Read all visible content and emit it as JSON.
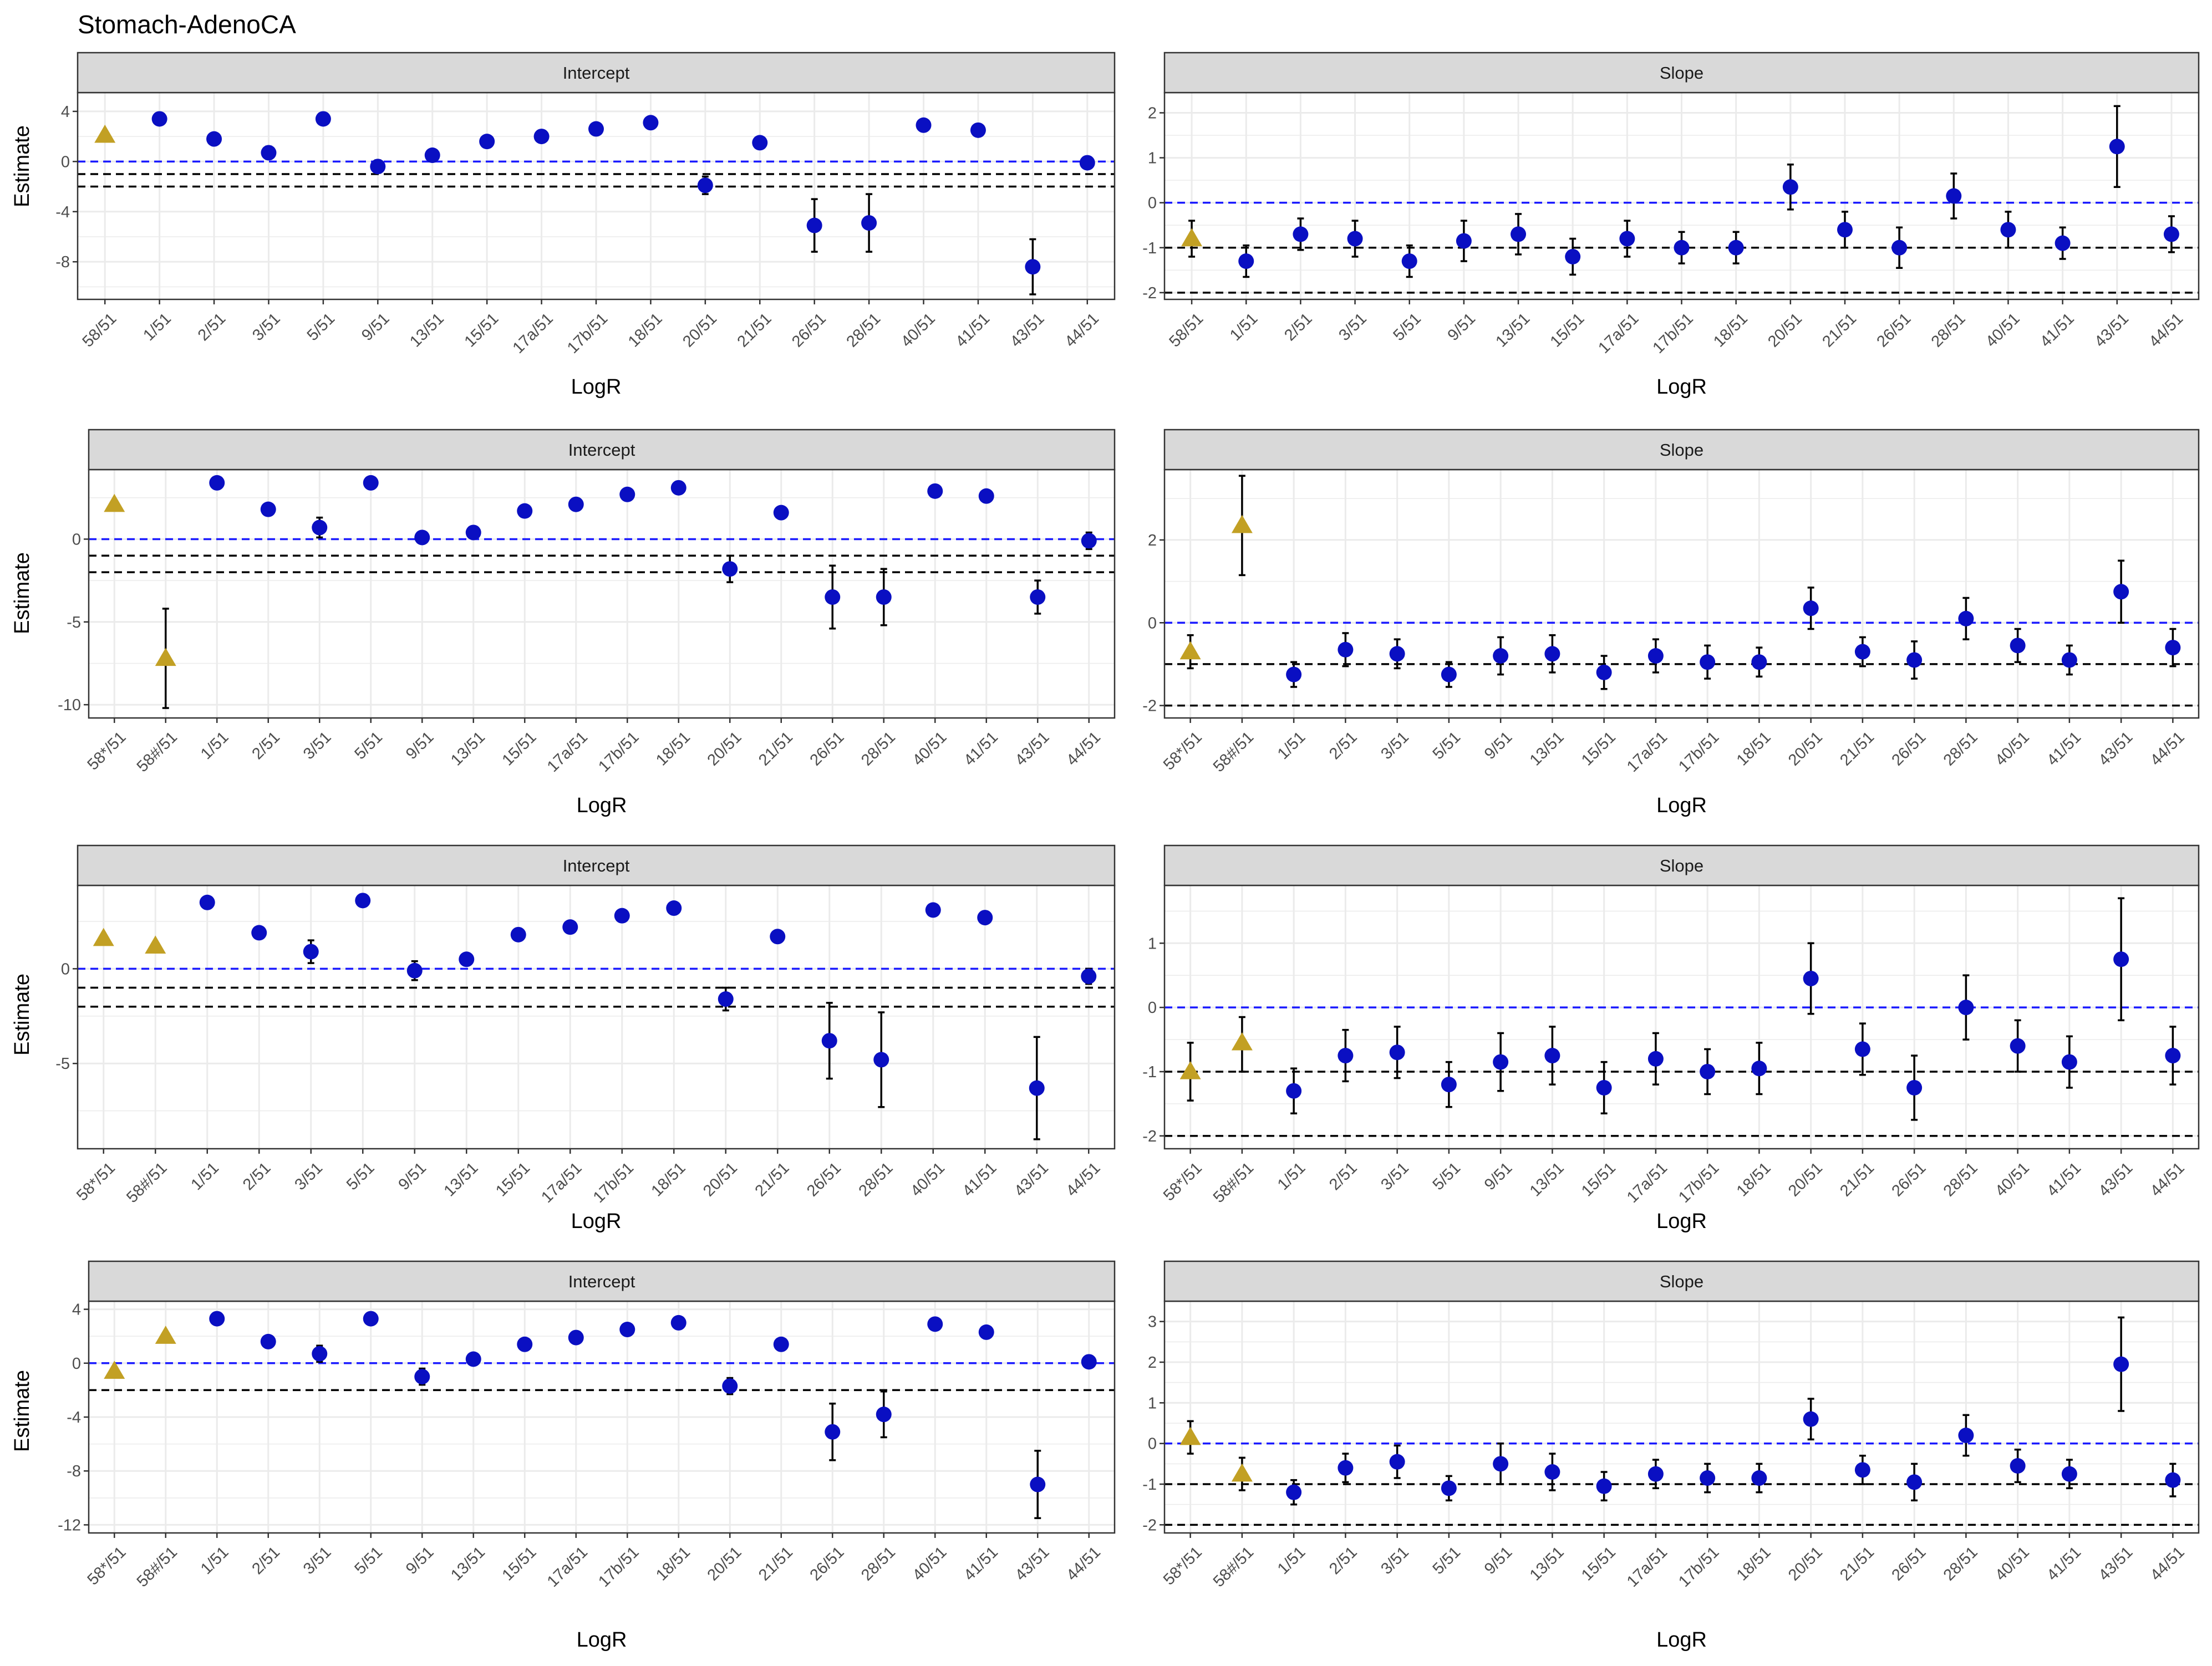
{
  "title": "Stomach-AdenoCA",
  "colors": {
    "point_blue": "#0a0fc2",
    "point_gold": "#c2a024",
    "ref_blue": "#1a1aff",
    "ref_black": "#000000",
    "strip_bg": "#d9d9d9",
    "grid": "#ebebeb"
  },
  "chart_data": [
    {
      "row": 1,
      "panel": "Intercept",
      "type": "scatter",
      "xlabel": "LogR",
      "ylabel": "Estimate",
      "ylim": [
        -11,
        5.5
      ],
      "yticks": [
        -8,
        -4,
        0,
        4
      ],
      "ytick_labels": [
        "-8",
        "-4",
        "0",
        "4"
      ],
      "ref_lines": [
        {
          "y": 0,
          "color": "blue"
        },
        {
          "y": -1,
          "color": "black"
        },
        {
          "y": -2,
          "color": "black"
        }
      ],
      "categories": [
        "58/51",
        "1/51",
        "2/51",
        "3/51",
        "5/51",
        "9/51",
        "13/51",
        "15/51",
        "17a/51",
        "17b/51",
        "18/51",
        "20/51",
        "21/51",
        "26/51",
        "28/51",
        "40/51",
        "41/51",
        "43/51",
        "44/51"
      ],
      "estimate": [
        2.1,
        3.4,
        1.8,
        0.7,
        3.4,
        -0.4,
        0.5,
        1.6,
        2.0,
        2.6,
        3.1,
        -1.9,
        1.5,
        -5.1,
        -4.9,
        2.9,
        2.5,
        -8.4,
        -0.1
      ],
      "lower": [
        2.1,
        3.4,
        1.8,
        0.2,
        3.4,
        -0.9,
        0.5,
        1.6,
        2.0,
        2.6,
        3.1,
        -2.6,
        1.5,
        -7.2,
        -7.2,
        2.9,
        2.5,
        -10.6,
        -0.4
      ],
      "upper": [
        2.1,
        3.4,
        1.8,
        1.2,
        3.4,
        0.1,
        0.5,
        1.6,
        2.0,
        2.6,
        3.1,
        -1.2,
        1.5,
        -3.0,
        -2.6,
        2.9,
        2.5,
        -6.2,
        0.2
      ],
      "group": [
        "gold",
        "blue",
        "blue",
        "blue",
        "blue",
        "blue",
        "blue",
        "blue",
        "blue",
        "blue",
        "blue",
        "blue",
        "blue",
        "blue",
        "blue",
        "blue",
        "blue",
        "blue",
        "blue"
      ]
    },
    {
      "row": 1,
      "panel": "Slope",
      "type": "scatter",
      "xlabel": "LogR",
      "ylabel": "",
      "ylim": [
        -2.15,
        2.45
      ],
      "yticks": [
        -2,
        -1,
        0,
        1,
        2
      ],
      "ytick_labels": [
        "-2",
        "-1",
        "0",
        "1",
        "2"
      ],
      "ref_lines": [
        {
          "y": 0,
          "color": "blue"
        },
        {
          "y": -1,
          "color": "black"
        },
        {
          "y": -2,
          "color": "black"
        }
      ],
      "categories": [
        "58/51",
        "1/51",
        "2/51",
        "3/51",
        "5/51",
        "9/51",
        "13/51",
        "15/51",
        "17a/51",
        "17b/51",
        "18/51",
        "20/51",
        "21/51",
        "26/51",
        "28/51",
        "40/51",
        "41/51",
        "43/51",
        "44/51"
      ],
      "estimate": [
        -0.8,
        -1.3,
        -0.7,
        -0.8,
        -1.3,
        -0.85,
        -0.7,
        -1.2,
        -0.8,
        -1.0,
        -1.0,
        0.35,
        -0.6,
        -1.0,
        0.15,
        -0.6,
        -0.9,
        1.25,
        -0.7
      ],
      "lower": [
        -1.2,
        -1.65,
        -1.05,
        -1.2,
        -1.65,
        -1.3,
        -1.15,
        -1.6,
        -1.2,
        -1.35,
        -1.35,
        -0.15,
        -1.0,
        -1.45,
        -0.35,
        -1.0,
        -1.25,
        0.35,
        -1.1
      ],
      "upper": [
        -0.4,
        -0.95,
        -0.35,
        -0.4,
        -0.95,
        -0.4,
        -0.25,
        -0.8,
        -0.4,
        -0.65,
        -0.65,
        0.85,
        -0.2,
        -0.55,
        0.65,
        -0.2,
        -0.55,
        2.15,
        -0.3
      ],
      "group": [
        "gold",
        "blue",
        "blue",
        "blue",
        "blue",
        "blue",
        "blue",
        "blue",
        "blue",
        "blue",
        "blue",
        "blue",
        "blue",
        "blue",
        "blue",
        "blue",
        "blue",
        "blue",
        "blue"
      ]
    },
    {
      "row": 2,
      "panel": "Intercept",
      "type": "scatter",
      "xlabel": "LogR",
      "ylabel": "Estimate",
      "ylim": [
        -10.8,
        4.2
      ],
      "yticks": [
        -10,
        -5,
        0
      ],
      "ytick_labels": [
        "-10",
        "-5",
        "0"
      ],
      "ref_lines": [
        {
          "y": 0,
          "color": "blue"
        },
        {
          "y": -1,
          "color": "black"
        },
        {
          "y": -2,
          "color": "black"
        }
      ],
      "categories": [
        "58*/51",
        "58#/51",
        "1/51",
        "2/51",
        "3/51",
        "5/51",
        "9/51",
        "13/51",
        "15/51",
        "17a/51",
        "17b/51",
        "18/51",
        "20/51",
        "21/51",
        "26/51",
        "28/51",
        "40/51",
        "41/51",
        "43/51",
        "44/51"
      ],
      "estimate": [
        2.1,
        -7.2,
        3.4,
        1.8,
        0.7,
        3.4,
        0.1,
        0.4,
        1.7,
        2.1,
        2.7,
        3.1,
        -1.8,
        1.6,
        -3.5,
        -3.5,
        2.9,
        2.6,
        -3.5,
        -0.1
      ],
      "lower": [
        2.1,
        -10.2,
        3.4,
        1.8,
        0.1,
        3.4,
        0.1,
        0.4,
        1.7,
        2.1,
        2.7,
        3.1,
        -2.6,
        1.6,
        -5.4,
        -5.2,
        2.9,
        2.6,
        -4.5,
        -0.6
      ],
      "upper": [
        2.1,
        -4.2,
        3.4,
        1.8,
        1.3,
        3.4,
        0.1,
        0.4,
        1.7,
        2.1,
        2.7,
        3.1,
        -1.0,
        1.6,
        -1.6,
        -1.8,
        2.9,
        2.6,
        -2.5,
        0.4
      ],
      "group": [
        "gold",
        "gold",
        "blue",
        "blue",
        "blue",
        "blue",
        "blue",
        "blue",
        "blue",
        "blue",
        "blue",
        "blue",
        "blue",
        "blue",
        "blue",
        "blue",
        "blue",
        "blue",
        "blue",
        "blue"
      ]
    },
    {
      "row": 2,
      "panel": "Slope",
      "type": "scatter",
      "xlabel": "LogR",
      "ylabel": "",
      "ylim": [
        -2.3,
        3.7
      ],
      "yticks": [
        -2,
        0,
        2
      ],
      "ytick_labels": [
        "-2",
        "0",
        "2"
      ],
      "ref_lines": [
        {
          "y": 0,
          "color": "blue"
        },
        {
          "y": -1,
          "color": "black"
        },
        {
          "y": -2,
          "color": "black"
        }
      ],
      "categories": [
        "58*/51",
        "58#/51",
        "1/51",
        "2/51",
        "3/51",
        "5/51",
        "9/51",
        "13/51",
        "15/51",
        "17a/51",
        "17b/51",
        "18/51",
        "20/51",
        "21/51",
        "26/51",
        "28/51",
        "40/51",
        "41/51",
        "43/51",
        "44/51"
      ],
      "estimate": [
        -0.7,
        2.35,
        -1.25,
        -0.65,
        -0.75,
        -1.25,
        -0.8,
        -0.75,
        -1.2,
        -0.8,
        -0.95,
        -0.95,
        0.35,
        -0.7,
        -0.9,
        0.1,
        -0.55,
        -0.9,
        0.75,
        -0.6
      ],
      "lower": [
        -1.1,
        1.15,
        -1.55,
        -1.05,
        -1.1,
        -1.55,
        -1.25,
        -1.2,
        -1.6,
        -1.2,
        -1.35,
        -1.3,
        -0.15,
        -1.05,
        -1.35,
        -0.4,
        -0.95,
        -1.25,
        0.0,
        -1.05
      ],
      "upper": [
        -0.3,
        3.55,
        -0.95,
        -0.25,
        -0.4,
        -0.95,
        -0.35,
        -0.3,
        -0.8,
        -0.4,
        -0.55,
        -0.6,
        0.85,
        -0.35,
        -0.45,
        0.6,
        -0.15,
        -0.55,
        1.5,
        -0.15
      ],
      "group": [
        "gold",
        "gold",
        "blue",
        "blue",
        "blue",
        "blue",
        "blue",
        "blue",
        "blue",
        "blue",
        "blue",
        "blue",
        "blue",
        "blue",
        "blue",
        "blue",
        "blue",
        "blue",
        "blue",
        "blue"
      ]
    },
    {
      "row": 3,
      "panel": "Intercept",
      "type": "scatter",
      "xlabel": "LogR",
      "ylabel": "Estimate",
      "ylim": [
        -9.5,
        4.4
      ],
      "yticks": [
        -5,
        0
      ],
      "ytick_labels": [
        "-5",
        "0"
      ],
      "ref_lines": [
        {
          "y": 0,
          "color": "blue"
        },
        {
          "y": -1,
          "color": "black"
        },
        {
          "y": -2,
          "color": "black"
        }
      ],
      "categories": [
        "58*/51",
        "58#/51",
        "1/51",
        "2/51",
        "3/51",
        "5/51",
        "9/51",
        "13/51",
        "15/51",
        "17a/51",
        "17b/51",
        "18/51",
        "20/51",
        "21/51",
        "26/51",
        "28/51",
        "40/51",
        "41/51",
        "43/51",
        "44/51"
      ],
      "estimate": [
        1.6,
        1.2,
        3.5,
        1.9,
        0.9,
        3.6,
        -0.1,
        0.5,
        1.8,
        2.2,
        2.8,
        3.2,
        -1.6,
        1.7,
        -3.8,
        -4.8,
        3.1,
        2.7,
        -6.3,
        -0.4
      ],
      "lower": [
        1.6,
        1.2,
        3.5,
        1.9,
        0.3,
        3.6,
        -0.6,
        0.5,
        1.8,
        2.2,
        2.8,
        3.2,
        -2.2,
        1.7,
        -5.8,
        -7.3,
        3.1,
        2.7,
        -9.0,
        -0.8
      ],
      "upper": [
        1.6,
        1.2,
        3.5,
        1.9,
        1.5,
        3.6,
        0.4,
        0.5,
        1.8,
        2.2,
        2.8,
        3.2,
        -1.0,
        1.7,
        -1.8,
        -2.3,
        3.1,
        2.7,
        -3.6,
        0.0
      ],
      "group": [
        "gold",
        "gold",
        "blue",
        "blue",
        "blue",
        "blue",
        "blue",
        "blue",
        "blue",
        "blue",
        "blue",
        "blue",
        "blue",
        "blue",
        "blue",
        "blue",
        "blue",
        "blue",
        "blue",
        "blue"
      ]
    },
    {
      "row": 3,
      "panel": "Slope",
      "type": "scatter",
      "xlabel": "LogR",
      "ylabel": "",
      "ylim": [
        -2.2,
        1.9
      ],
      "yticks": [
        -2,
        -1,
        0,
        1
      ],
      "ytick_labels": [
        "-2",
        "-1",
        "0",
        "1"
      ],
      "ref_lines": [
        {
          "y": 0,
          "color": "blue"
        },
        {
          "y": -1,
          "color": "black"
        },
        {
          "y": -2,
          "color": "black"
        }
      ],
      "categories": [
        "58*/51",
        "58#/51",
        "1/51",
        "2/51",
        "3/51",
        "5/51",
        "9/51",
        "13/51",
        "15/51",
        "17a/51",
        "17b/51",
        "18/51",
        "20/51",
        "21/51",
        "26/51",
        "28/51",
        "40/51",
        "41/51",
        "43/51",
        "44/51"
      ],
      "estimate": [
        -1.0,
        -0.55,
        -1.3,
        -0.75,
        -0.7,
        -1.2,
        -0.85,
        -0.75,
        -1.25,
        -0.8,
        -1.0,
        -0.95,
        0.45,
        -0.65,
        -1.25,
        0.0,
        -0.6,
        -0.85,
        0.75,
        -0.75
      ],
      "lower": [
        -1.45,
        -1.0,
        -1.65,
        -1.15,
        -1.1,
        -1.55,
        -1.3,
        -1.2,
        -1.65,
        -1.2,
        -1.35,
        -1.35,
        -0.1,
        -1.05,
        -1.75,
        -0.5,
        -1.0,
        -1.25,
        -0.2,
        -1.2
      ],
      "upper": [
        -0.55,
        -0.15,
        -0.95,
        -0.35,
        -0.3,
        -0.85,
        -0.4,
        -0.3,
        -0.85,
        -0.4,
        -0.65,
        -0.55,
        1.0,
        -0.25,
        -0.75,
        0.5,
        -0.2,
        -0.45,
        1.7,
        -0.3
      ],
      "group": [
        "gold",
        "gold",
        "blue",
        "blue",
        "blue",
        "blue",
        "blue",
        "blue",
        "blue",
        "blue",
        "blue",
        "blue",
        "blue",
        "blue",
        "blue",
        "blue",
        "blue",
        "blue",
        "blue",
        "blue"
      ]
    },
    {
      "row": 4,
      "panel": "Intercept",
      "type": "scatter",
      "xlabel": "LogR",
      "ylabel": "Estimate",
      "ylim": [
        -12.6,
        4.6
      ],
      "yticks": [
        -12,
        -8,
        -4,
        0,
        4
      ],
      "ytick_labels": [
        "-12",
        "-8",
        "-4",
        "0",
        "4"
      ],
      "ref_lines": [
        {
          "y": 0,
          "color": "blue"
        },
        {
          "y": -2,
          "color": "black"
        }
      ],
      "categories": [
        "58*/51",
        "58#/51",
        "1/51",
        "2/51",
        "3/51",
        "5/51",
        "9/51",
        "13/51",
        "15/51",
        "17a/51",
        "17b/51",
        "18/51",
        "20/51",
        "21/51",
        "26/51",
        "28/51",
        "40/51",
        "41/51",
        "43/51",
        "44/51"
      ],
      "estimate": [
        -0.6,
        2.0,
        3.3,
        1.6,
        0.7,
        3.3,
        -1.0,
        0.3,
        1.4,
        1.9,
        2.5,
        3.0,
        -1.7,
        1.4,
        -5.1,
        -3.8,
        2.9,
        2.3,
        -9.0,
        0.1
      ],
      "lower": [
        -0.6,
        2.0,
        3.3,
        1.6,
        0.1,
        3.3,
        -1.6,
        0.3,
        1.4,
        1.9,
        2.5,
        3.0,
        -2.3,
        1.4,
        -7.2,
        -5.5,
        2.9,
        2.3,
        -11.5,
        0.1
      ],
      "upper": [
        -0.6,
        2.0,
        3.3,
        1.6,
        1.3,
        3.3,
        -0.4,
        0.3,
        1.4,
        1.9,
        2.5,
        3.0,
        -1.1,
        1.4,
        -3.0,
        -2.1,
        2.9,
        2.3,
        -6.5,
        0.1
      ],
      "group": [
        "gold",
        "gold",
        "blue",
        "blue",
        "blue",
        "blue",
        "blue",
        "blue",
        "blue",
        "blue",
        "blue",
        "blue",
        "blue",
        "blue",
        "blue",
        "blue",
        "blue",
        "blue",
        "blue",
        "blue"
      ]
    },
    {
      "row": 4,
      "panel": "Slope",
      "type": "scatter",
      "xlabel": "LogR",
      "ylabel": "",
      "ylim": [
        -2.2,
        3.5
      ],
      "yticks": [
        -2,
        -1,
        0,
        1,
        2,
        3
      ],
      "ytick_labels": [
        "-2",
        "-1",
        "0",
        "1",
        "2",
        "3"
      ],
      "ref_lines": [
        {
          "y": 0,
          "color": "blue"
        },
        {
          "y": -1,
          "color": "black"
        },
        {
          "y": -2,
          "color": "black"
        }
      ],
      "categories": [
        "58*/51",
        "58#/51",
        "1/51",
        "2/51",
        "3/51",
        "5/51",
        "9/51",
        "13/51",
        "15/51",
        "17a/51",
        "17b/51",
        "18/51",
        "20/51",
        "21/51",
        "26/51",
        "28/51",
        "40/51",
        "41/51",
        "43/51",
        "44/51"
      ],
      "estimate": [
        0.15,
        -0.75,
        -1.2,
        -0.6,
        -0.45,
        -1.1,
        -0.5,
        -0.7,
        -1.05,
        -0.75,
        -0.85,
        -0.85,
        0.6,
        -0.65,
        -0.95,
        0.2,
        -0.55,
        -0.75,
        1.95,
        -0.9
      ],
      "lower": [
        -0.25,
        -1.15,
        -1.5,
        -0.95,
        -0.85,
        -1.4,
        -1.0,
        -1.15,
        -1.4,
        -1.1,
        -1.2,
        -1.2,
        0.1,
        -1.0,
        -1.4,
        -0.3,
        -0.95,
        -1.1,
        0.8,
        -1.3
      ],
      "upper": [
        0.55,
        -0.35,
        -0.9,
        -0.25,
        -0.05,
        -0.8,
        0.0,
        -0.25,
        -0.7,
        -0.4,
        -0.5,
        -0.5,
        1.1,
        -0.3,
        -0.5,
        0.7,
        -0.15,
        -0.4,
        3.1,
        -0.5
      ],
      "group": [
        "gold",
        "gold",
        "blue",
        "blue",
        "blue",
        "blue",
        "blue",
        "blue",
        "blue",
        "blue",
        "blue",
        "blue",
        "blue",
        "blue",
        "blue",
        "blue",
        "blue",
        "blue",
        "blue",
        "blue"
      ]
    }
  ]
}
